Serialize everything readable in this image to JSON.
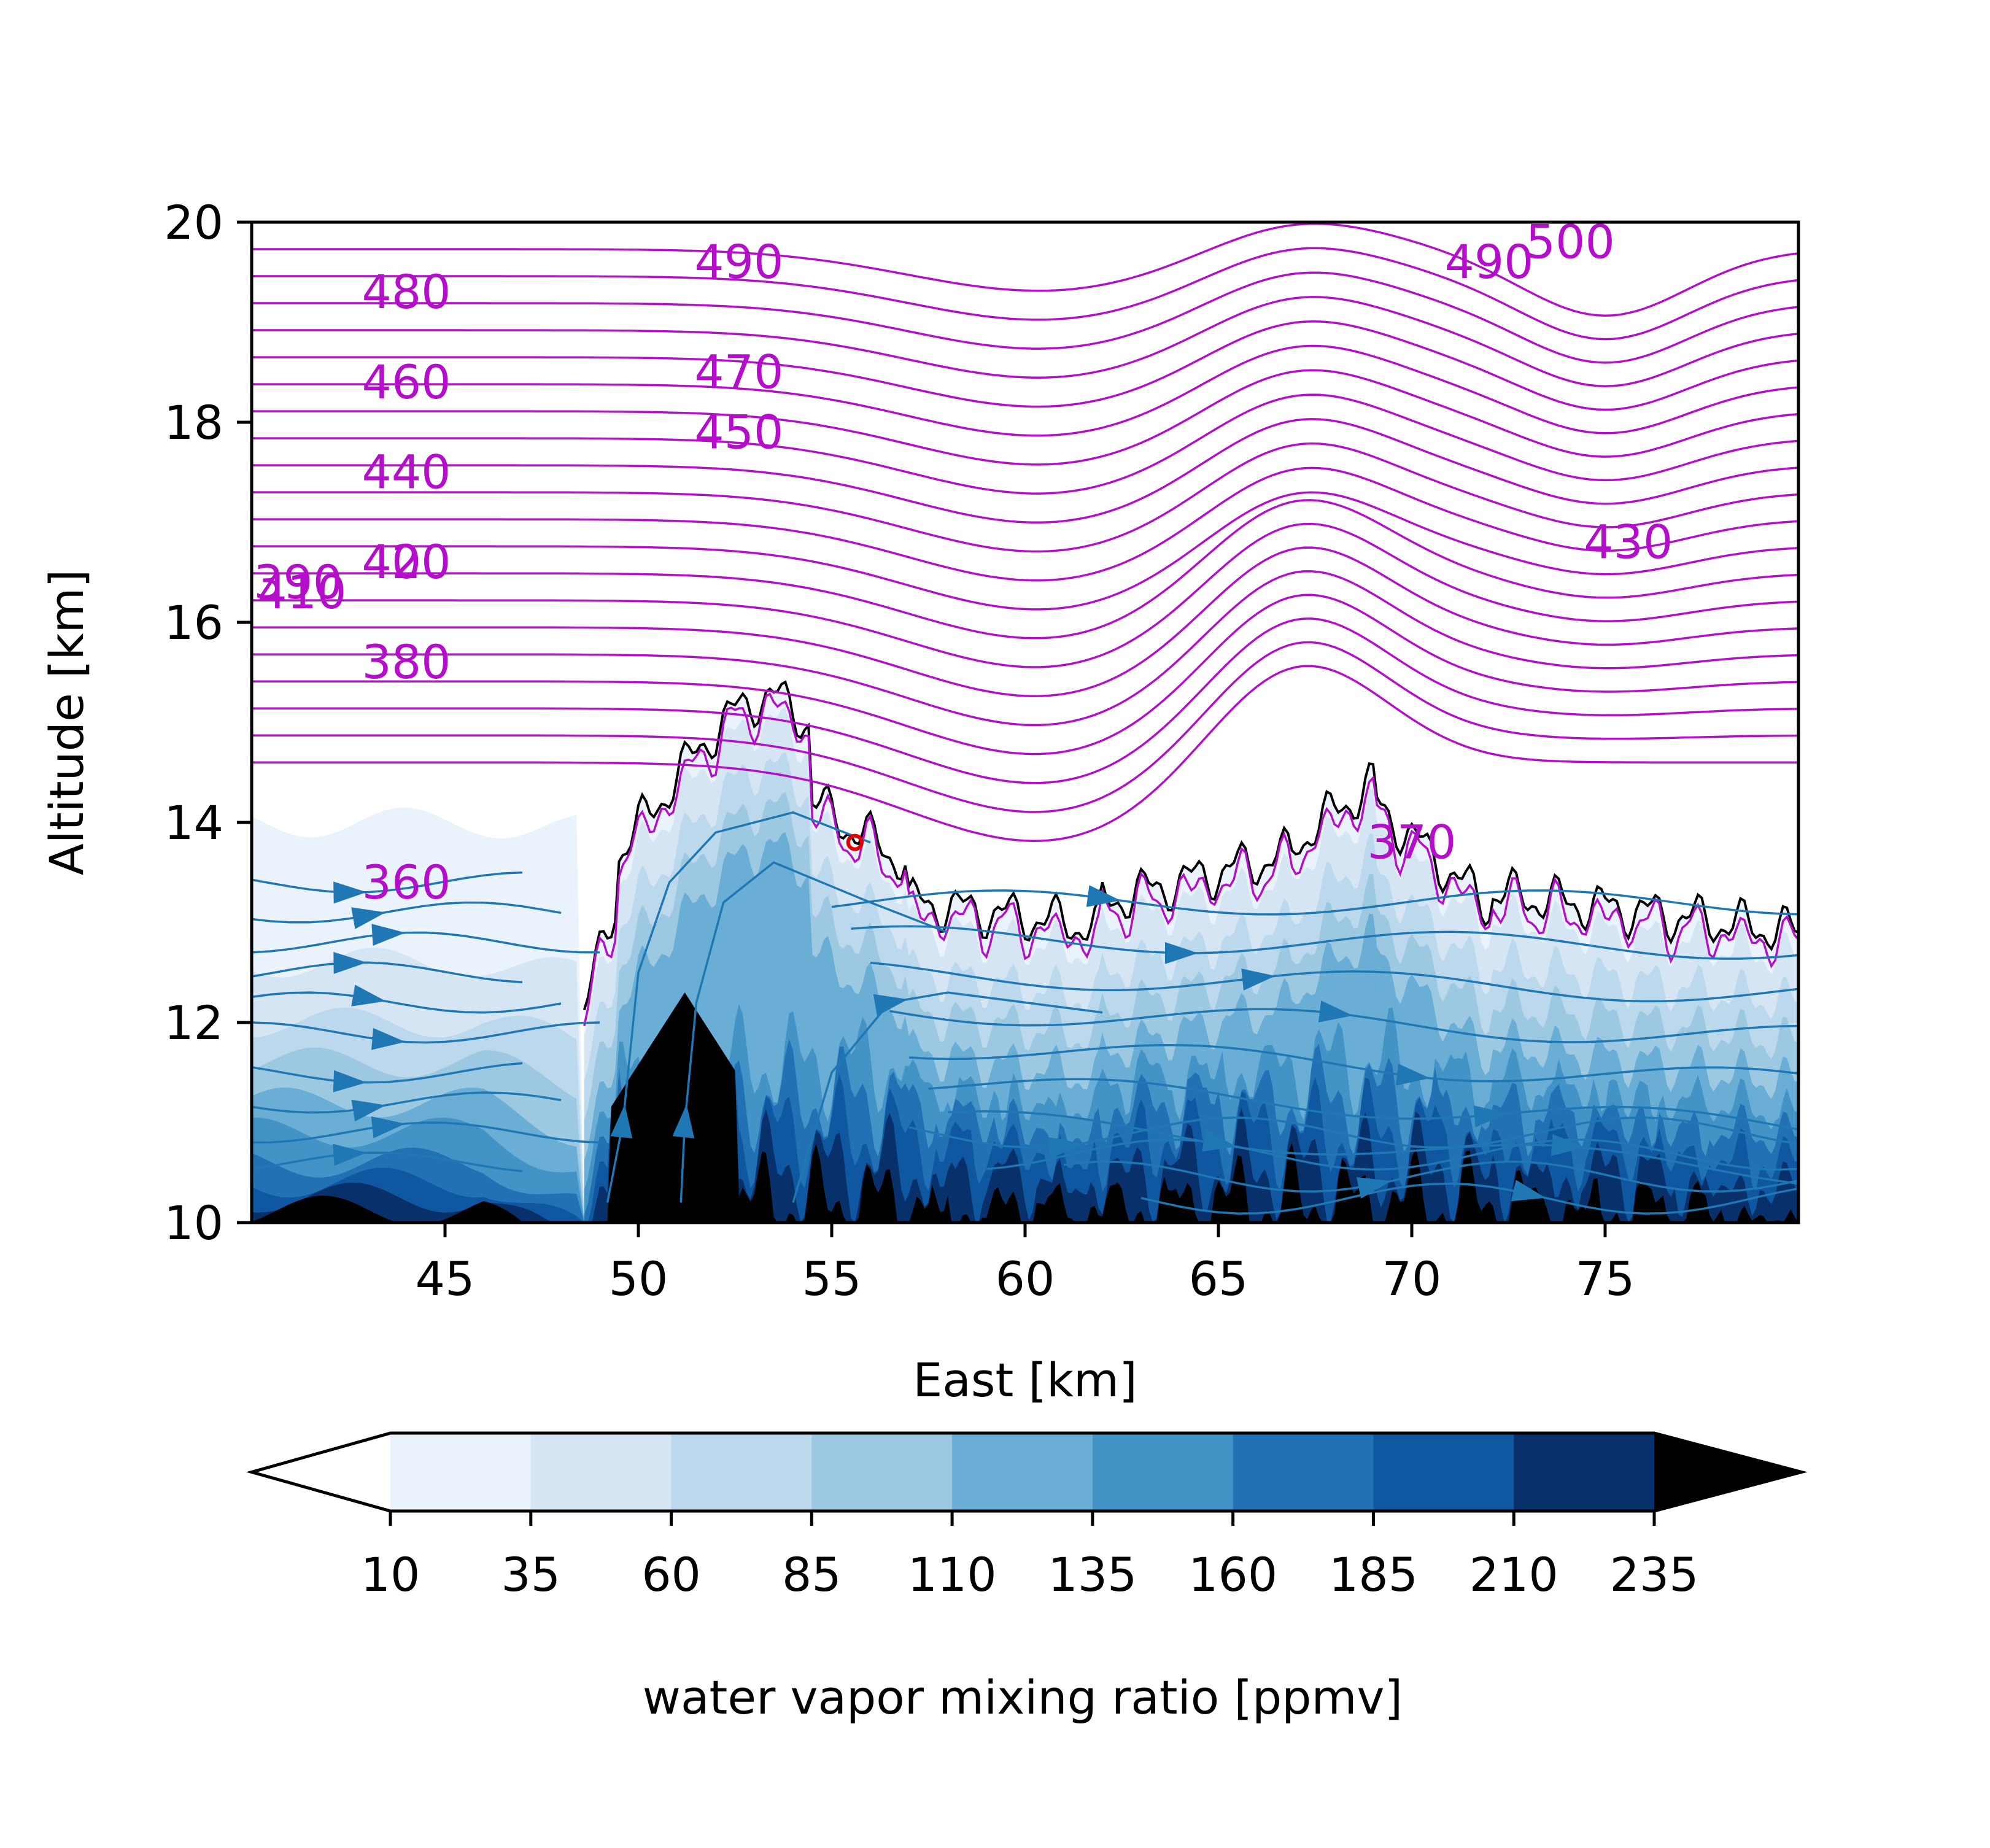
{
  "chart_data": {
    "type": "contour",
    "xlabel": "East [km]",
    "ylabel": "Altitude [km]",
    "xlim": [
      40,
      80
    ],
    "ylim": [
      10,
      20
    ],
    "xticks": [
      45,
      50,
      55,
      60,
      65,
      70,
      75
    ],
    "yticks": [
      10,
      12,
      14,
      16,
      18,
      20
    ],
    "grid": false,
    "filled_contours": {
      "variable": "water vapor mixing ratio",
      "levels": [
        10,
        35,
        60,
        85,
        110,
        135,
        160,
        185,
        210,
        235
      ],
      "colors": [
        "#ffffff",
        "#eaf2fb",
        "#d6e5f4",
        "#bcd8ec",
        "#9cc9e1",
        "#6aaed6",
        "#4393c6",
        "#2271b5",
        "#0f58a1",
        "#08306b",
        "#000000"
      ],
      "extend": "both"
    },
    "isentropes": {
      "color": "#b40fc8",
      "levels": [
        360,
        370,
        380,
        390,
        400,
        410,
        420,
        430,
        440,
        450,
        460,
        470,
        480,
        490,
        500
      ],
      "labels": [
        {
          "text": "360",
          "x": 44.0,
          "y": 13.4
        },
        {
          "text": "380",
          "x": 44.0,
          "y": 15.6
        },
        {
          "text": "390",
          "x": 41.2,
          "y": 16.4
        },
        {
          "text": "400",
          "x": 44.0,
          "y": 16.6
        },
        {
          "text": "410",
          "x": 41.3,
          "y": 16.3
        },
        {
          "text": "420",
          "x": 44.0,
          "y": 16.6
        },
        {
          "text": "440",
          "x": 44.0,
          "y": 17.5
        },
        {
          "text": "460",
          "x": 44.0,
          "y": 18.4
        },
        {
          "text": "480",
          "x": 44.0,
          "y": 19.3
        },
        {
          "text": "450",
          "x": 52.6,
          "y": 17.9
        },
        {
          "text": "470",
          "x": 52.6,
          "y": 18.5
        },
        {
          "text": "490",
          "x": 52.6,
          "y": 19.6
        },
        {
          "text": "430",
          "x": 75.6,
          "y": 16.8
        },
        {
          "text": "490",
          "x": 72.0,
          "y": 19.6
        },
        {
          "text": "500",
          "x": 74.1,
          "y": 19.8
        },
        {
          "text": "370",
          "x": 70.0,
          "y": 13.8
        }
      ]
    },
    "cloud_boundary_color": "#000000",
    "streamline_color": "#1f77b4",
    "marker": {
      "color": "#e00000",
      "x": 55.6,
      "y": 13.8
    },
    "colorbar": {
      "label": "water vapor mixing ratio [ppmv]",
      "ticks": [
        10,
        35,
        60,
        85,
        110,
        135,
        160,
        185,
        210,
        235
      ],
      "orientation": "horizontal"
    }
  }
}
